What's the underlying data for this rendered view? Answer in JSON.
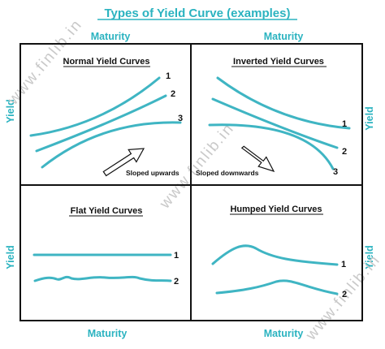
{
  "title": "Types of Yield Curve (examples)",
  "axis_labels": {
    "top_left": "Maturity",
    "top_right": "Maturity",
    "bottom_left": "Maturity",
    "bottom_right": "Maturity",
    "left_top": "Yield",
    "left_bottom": "Yield",
    "right_top": "Yield",
    "right_bottom": "Yield"
  },
  "watermark": "www.finlib.in",
  "panels": [
    {
      "title": "Normal Yield Curves",
      "note": "Sloped upwards",
      "curves": [
        {
          "label": "1"
        },
        {
          "label": "2"
        },
        {
          "label": "3"
        }
      ]
    },
    {
      "title": "Inverted Yield Curves",
      "note": "Sloped downwards",
      "curves": [
        {
          "label": "1"
        },
        {
          "label": "2"
        },
        {
          "label": "3"
        }
      ]
    },
    {
      "title": "Flat Yield Curves",
      "curves": [
        {
          "label": "1"
        },
        {
          "label": "2"
        }
      ]
    },
    {
      "title": "Humped Yield Curves",
      "curves": [
        {
          "label": "1"
        },
        {
          "label": "2"
        }
      ]
    }
  ],
  "colors": {
    "accent": "#2bb3c0",
    "curve": "#3fb5c3",
    "frame": "#111111",
    "watermark": "#c9c9c9"
  }
}
